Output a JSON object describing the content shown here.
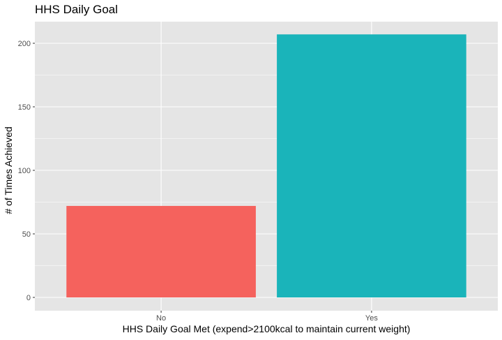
{
  "chart_data": {
    "type": "bar",
    "title": "HHS Daily Goal",
    "xlabel": "HHS Daily Goal Met (expend>2100kcal to maintain current weight)",
    "ylabel": "# of Times Achieved",
    "categories": [
      "No",
      "Yes"
    ],
    "values": [
      72,
      207
    ],
    "ylim": [
      0,
      220
    ],
    "yticks": [
      0,
      50,
      100,
      150,
      200
    ],
    "grid": true,
    "legend": "none",
    "colors": [
      "#F8766D",
      "#00BFC4"
    ],
    "bar_colors_rendered": [
      "#F5625D",
      "#1AB4BA"
    ],
    "panel_background": "#E5E5E5",
    "gridline_color": "#FFFFFF"
  }
}
